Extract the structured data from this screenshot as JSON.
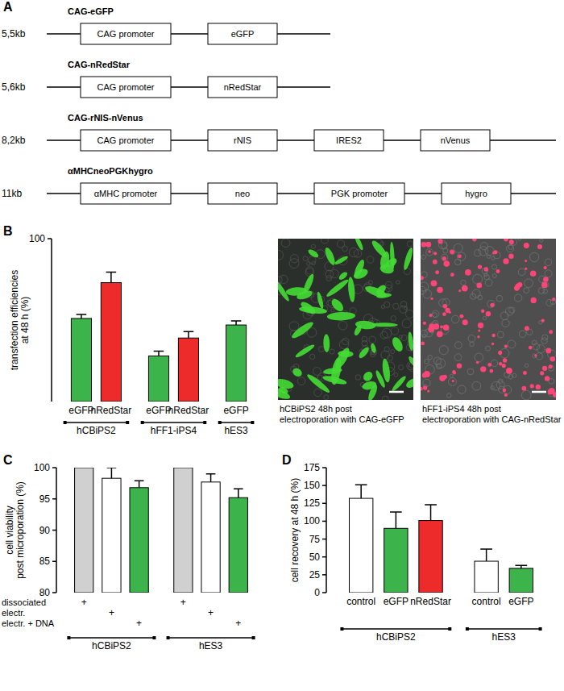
{
  "diagram": {
    "panel": "A",
    "constructs": [
      {
        "name": "CAG-eGFP",
        "size": "5,5kb",
        "elements": [
          "CAG promoter",
          "eGFP"
        ]
      },
      {
        "name": "CAG-nRedStar",
        "size": "5,6kb",
        "elements": [
          "CAG promoter",
          "nRedStar"
        ]
      },
      {
        "name": "CAG-rNIS-nVenus",
        "size": "8,2kb",
        "elements": [
          "CAG promoter",
          "rNIS",
          "IRES2",
          "nVenus"
        ]
      },
      {
        "name": "αMHCneoPGKhygro",
        "size": "11kb",
        "elements": [
          "αMHC promoter",
          "neo",
          "PGK promoter",
          "hygro"
        ]
      }
    ]
  },
  "chart_data": [
    {
      "type": "bar",
      "panel": "B",
      "ylabel": [
        "transfection efficiencies",
        "at 48 h (%)"
      ],
      "categories": [
        "eGFP",
        "nRedStar",
        "eGFP",
        "nRedStar",
        "eGFP"
      ],
      "values": [
        51,
        73,
        28,
        39,
        47
      ],
      "errors": [
        2.5,
        6.5,
        3,
        4,
        2.5
      ],
      "colors": [
        "#3cb44b",
        "#ee2b2b",
        "#3cb44b",
        "#ee2b2b",
        "#3cb44b"
      ],
      "groups": [
        {
          "label": "hCBiPS2",
          "count": 2
        },
        {
          "label": "hFF1-iPS4",
          "count": 2
        },
        {
          "label": "hES3",
          "count": 1
        }
      ],
      "ylim": [
        0,
        100
      ],
      "yticks": [
        100
      ],
      "grid": false
    },
    {
      "type": "bar",
      "panel": "C",
      "ylabel": [
        "cell viability",
        "post microporation (%)"
      ],
      "categories": [
        null,
        null,
        null,
        null,
        null,
        null
      ],
      "values": [
        100,
        98.3,
        96.8,
        100,
        97.7,
        95.2
      ],
      "errors": [
        null,
        1.7,
        1.1,
        null,
        1.3,
        1.4
      ],
      "colors": [
        "#d0d0d0",
        "#ffffff",
        "#3cb44b",
        "#d0d0d0",
        "#ffffff",
        "#3cb44b"
      ],
      "conditions": {
        "rows": [
          "dissociated",
          "electr.",
          "electr. + DNA"
        ],
        "mark": "+",
        "per_bar": [
          0,
          1,
          2,
          0,
          1,
          2
        ]
      },
      "groups": [
        {
          "label": "hCBiPS2",
          "count": 3
        },
        {
          "label": "hES3",
          "count": 3
        }
      ],
      "ylim": [
        80,
        100
      ],
      "yticks": [
        80,
        85,
        90,
        95,
        100
      ],
      "grid": false
    },
    {
      "type": "bar",
      "panel": "D",
      "ylabel": [
        "cell recovery at 48 h (%)"
      ],
      "categories": [
        "control",
        "eGFP",
        "nRedStar",
        "control",
        "eGFP"
      ],
      "values": [
        132,
        90,
        101,
        44,
        34
      ],
      "errors": [
        19,
        23,
        22,
        17,
        4
      ],
      "colors": [
        "#ffffff",
        "#3cb44b",
        "#ee2b2b",
        "#ffffff",
        "#3cb44b"
      ],
      "groups": [
        {
          "label": "hCBiPS2",
          "count": 3
        },
        {
          "label": "hES3",
          "count": 2
        }
      ],
      "ylim": [
        0,
        175
      ],
      "yticks": [
        0,
        25,
        50,
        75,
        100,
        125,
        150,
        175
      ],
      "grid": false
    }
  ],
  "images": [
    {
      "caption": [
        "hCBiPS2 48h post",
        "electroporation with CAG-eGFP"
      ],
      "color": "#44dd33"
    },
    {
      "caption": [
        "hFF1-iPS4 48h post",
        "electroporation with CAG-nRedStar"
      ],
      "color": "#ff4477"
    }
  ]
}
